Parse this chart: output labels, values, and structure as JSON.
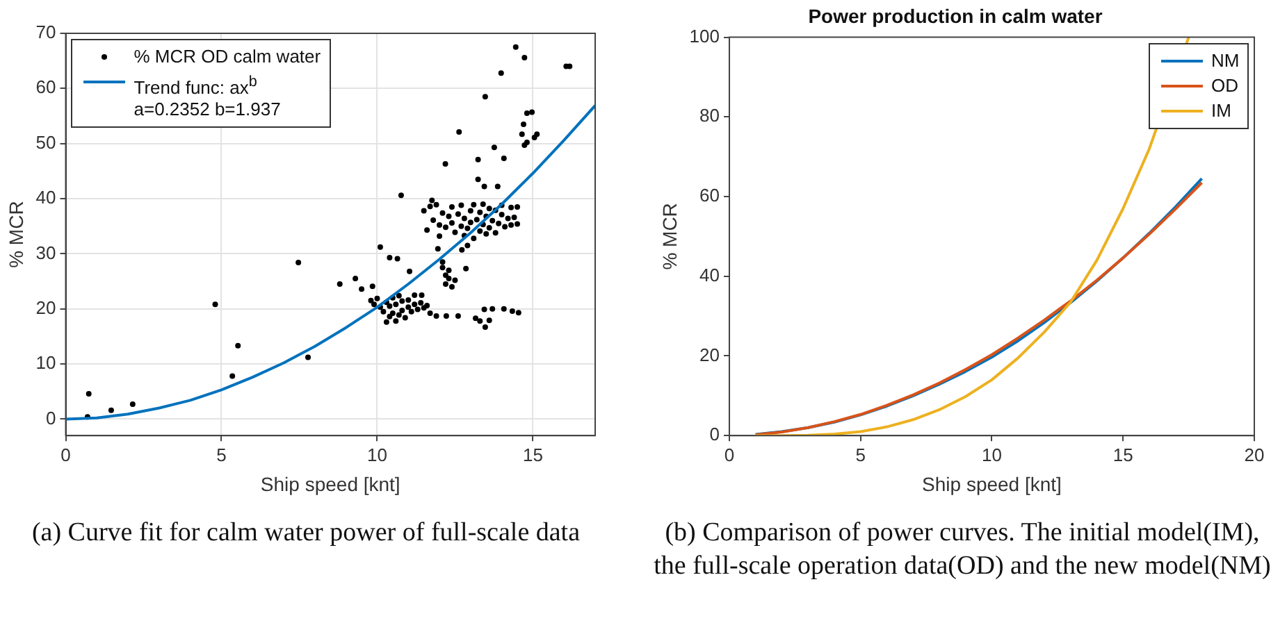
{
  "chart_data": [
    {
      "type": "scatter",
      "xlabel": "Ship speed [knt]",
      "ylabel": "% MCR",
      "xlim": [
        0,
        17
      ],
      "ylim": [
        -3,
        70
      ],
      "xticks": [
        0,
        5,
        10,
        15
      ],
      "yticks": [
        0,
        10,
        20,
        30,
        40,
        50,
        60,
        70
      ],
      "grid": true,
      "legend": "top left",
      "annotations": [
        "(a) Curve fit for calm water power of full-scale data"
      ],
      "series": [
        {
          "name": "% MCR OD calm water",
          "type": "scatter",
          "marker": "circle",
          "color": "#000000",
          "x": [
            0.7,
            0.74,
            1.46,
            2.15,
            4.8,
            5.35,
            5.53,
            7.47,
            7.78,
            8.8,
            9.3,
            9.5,
            9.85,
            10.1,
            10.4,
            10.65,
            10.77,
            11.04,
            11.43,
            11.76,
            11.95,
            12.19,
            12.63,
            12.72,
            12.85,
            13.24,
            13.47,
            13.24,
            13.44,
            13.76,
            13.87,
            13.98,
            14.07,
            14.45,
            14.73,
            16.07,
            16.18,
            14.81,
            14.97,
            14.7,
            14.65,
            14.81,
            15.05,
            15.13,
            14.73,
            11.9,
            12.22,
            12.6,
            13.16,
            13.3,
            13.47,
            13.44,
            13.7,
            13.6,
            14.07,
            14.34,
            14.54,
            9.8,
            9.9,
            10.0,
            10.1,
            10.2,
            10.3,
            10.4,
            10.4,
            10.5,
            10.5,
            10.6,
            10.6,
            10.7,
            10.8,
            10.8,
            10.9,
            11.0,
            11.0,
            11.1,
            11.2,
            11.3,
            11.4,
            11.5,
            11.6,
            10.3,
            10.7,
            11.2,
            11.7,
            12.1,
            12.2,
            12.2,
            12.3,
            12.4,
            12.3,
            12.5,
            12.1,
            11.7,
            11.8,
            11.9,
            12.0,
            12.1,
            12.2,
            12.3,
            12.4,
            12.4,
            12.5,
            12.6,
            12.7,
            12.7,
            12.8,
            12.8,
            12.9,
            13.0,
            13.0,
            13.1,
            13.1,
            13.2,
            13.3,
            13.3,
            13.4,
            13.4,
            13.5,
            13.5,
            13.6,
            13.6,
            13.7,
            13.8,
            13.8,
            13.9,
            14.0,
            14.0,
            14.1,
            14.2,
            14.3,
            14.3,
            14.4,
            14.5,
            14.5,
            12.0,
            11.6,
            11.5,
            12.9
          ],
          "values": [
            0.4,
            4.6,
            1.6,
            2.7,
            20.8,
            7.8,
            13.3,
            28.4,
            11.2,
            24.5,
            25.5,
            23.6,
            24.1,
            31.2,
            29.3,
            29.1,
            40.6,
            26.8,
            22.5,
            39.7,
            30.9,
            46.3,
            52.1,
            30.7,
            27.3,
            47.1,
            58.5,
            43.5,
            42.2,
            49.3,
            42.2,
            62.8,
            47.3,
            67.5,
            65.6,
            64,
            64,
            55.5,
            55.7,
            53.5,
            51.7,
            50.2,
            51.1,
            51.7,
            49.7,
            18.7,
            18.7,
            18.7,
            18.3,
            17.8,
            16.7,
            19.9,
            20.0,
            17.9,
            20.0,
            19.6,
            19.3,
            21.5,
            20.8,
            21.9,
            20.3,
            19.5,
            21.2,
            18.6,
            20.5,
            22.0,
            19.2,
            17.8,
            20.8,
            18.9,
            21.4,
            19.7,
            18.4,
            20.3,
            21.6,
            19.5,
            20.8,
            19.9,
            21.1,
            20.2,
            20.6,
            17.6,
            22.4,
            22.5,
            19.2,
            27.5,
            26.1,
            24.5,
            25.5,
            24.0,
            27.0,
            25.2,
            28.5,
            38.6,
            36.1,
            38.9,
            35.2,
            37.4,
            34.8,
            36.8,
            38.5,
            35.6,
            33.9,
            37.2,
            35.0,
            38.8,
            33.3,
            36.4,
            34.6,
            37.8,
            35.7,
            32.8,
            38.9,
            36.2,
            34.1,
            37.5,
            35.3,
            39.0,
            33.6,
            36.8,
            38.2,
            34.7,
            36.0,
            37.9,
            33.8,
            35.5,
            37.1,
            38.8,
            34.9,
            36.4,
            35.2,
            38.4,
            36.6,
            35.4,
            38.5,
            33.2,
            34.3,
            37.8,
            31.5
          ]
        },
        {
          "name": "Trend func: ax$^{b}$\na=0.2352 b=1.937",
          "type": "line",
          "marker": "none",
          "color": "#0072bd",
          "x": [
            0,
            1,
            2,
            3,
            4,
            5,
            6,
            7,
            8,
            9,
            10,
            11,
            12,
            13,
            14,
            15,
            16,
            17
          ],
          "values": [
            0,
            0.2,
            0.9,
            2.0,
            3.4,
            5.3,
            7.6,
            10.2,
            13.2,
            16.6,
            20.3,
            24.5,
            29.0,
            33.8,
            39.0,
            44.6,
            50.6,
            56.9
          ]
        }
      ]
    },
    {
      "type": "line",
      "title": "Power production in calm water",
      "xlabel": "Ship speed [knt]",
      "ylabel": "% MCR",
      "xlim": [
        0,
        20
      ],
      "ylim": [
        0,
        100
      ],
      "xticks": [
        0,
        5,
        10,
        15,
        20
      ],
      "yticks": [
        0,
        20,
        40,
        60,
        80,
        100
      ],
      "grid": false,
      "legend": "top right",
      "marker": "none",
      "annotations": [
        "(b) Comparison of power curves. The initial model(IM), the full-scale operation data(OD) and the new model(NM)"
      ],
      "series": [
        {
          "name": "NM",
          "color": "#0072bd",
          "x": [
            1,
            2,
            3,
            4,
            5,
            6,
            7,
            8,
            9,
            10,
            11,
            12,
            13,
            14,
            15,
            16,
            17,
            18
          ],
          "values": [
            0.3,
            1.0,
            2.0,
            3.4,
            5.2,
            7.4,
            10.0,
            12.9,
            16.1,
            19.7,
            23.8,
            28.4,
            33.4,
            38.8,
            44.6,
            50.8,
            57.4,
            64.5
          ]
        },
        {
          "name": "OD",
          "color": "#d95319",
          "x": [
            1,
            2,
            3,
            4,
            5,
            6,
            7,
            8,
            9,
            10,
            11,
            12,
            13,
            14,
            15,
            16,
            17,
            18
          ],
          "values": [
            0.2,
            0.9,
            2.0,
            3.5,
            5.3,
            7.6,
            10.2,
            13.2,
            16.6,
            20.3,
            24.5,
            29.0,
            33.8,
            39.0,
            44.6,
            50.6,
            56.9,
            63.5
          ]
        },
        {
          "name": "IM",
          "color": "#edb120",
          "x": [
            1,
            2,
            3,
            4,
            5,
            6,
            7,
            8,
            9,
            10,
            11,
            12,
            13,
            14,
            15,
            16,
            17,
            17.5
          ],
          "values": [
            0,
            0,
            0.1,
            0.4,
            1.0,
            2.2,
            4.0,
            6.5,
            9.8,
            14.0,
            19.5,
            26.0,
            33.5,
            44.0,
            57.0,
            72.0,
            null,
            100
          ]
        }
      ]
    }
  ]
}
